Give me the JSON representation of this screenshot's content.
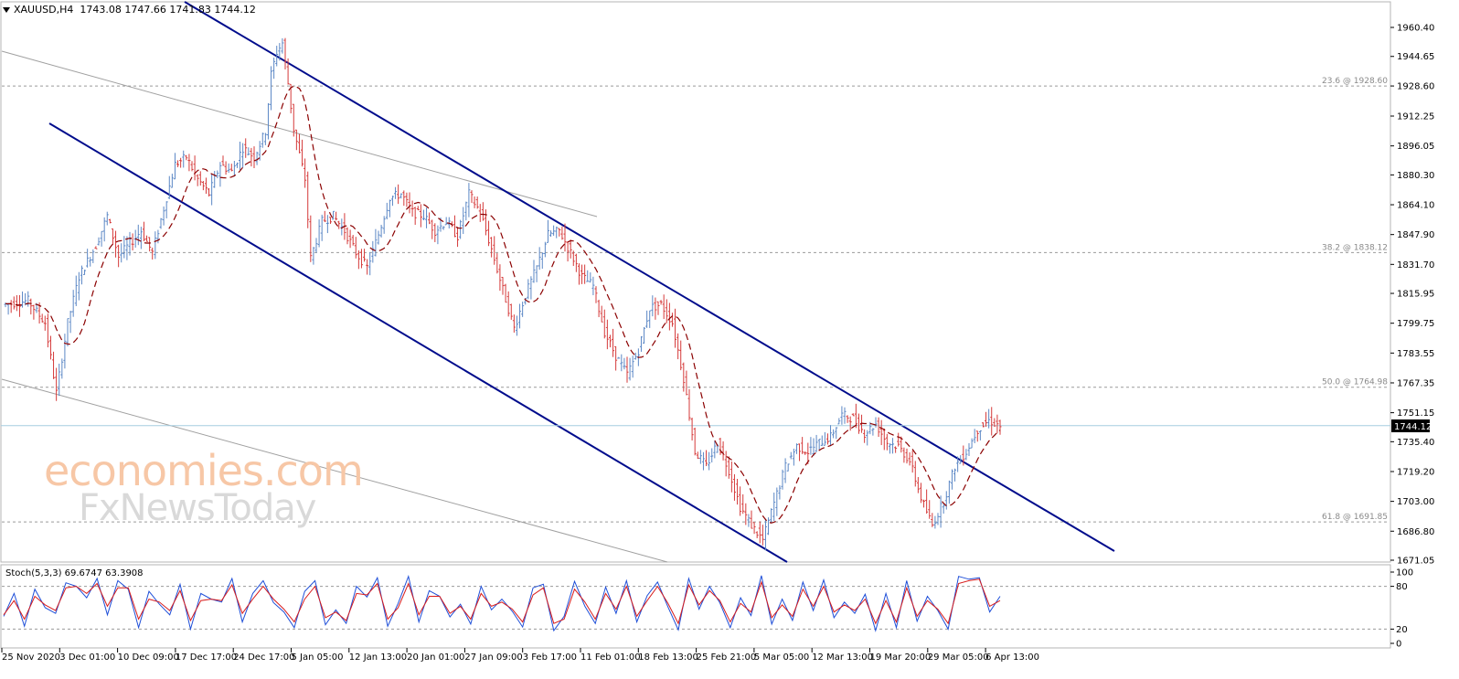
{
  "header": {
    "symbol": "XAUUSD,H4",
    "ohlc": "1743.08 1747.66 1741.83 1744.12"
  },
  "watermark": {
    "line1": "economies.com",
    "line2": "FxNewsToday"
  },
  "chart_data": [
    {
      "type": "candlestick",
      "symbol": "XAUUSD",
      "timeframe": "H4",
      "y_ticks": [
        "1960.40",
        "1944.65",
        "1928.60",
        "1912.25",
        "1896.05",
        "1880.30",
        "1864.10",
        "1847.90",
        "1831.70",
        "1815.95",
        "1799.75",
        "1783.55",
        "1767.35",
        "1751.15",
        "1735.40",
        "1719.20",
        "1703.00",
        "1686.80",
        "1671.05"
      ],
      "ylim": [
        1671.05,
        1960.4
      ],
      "x_ticks": [
        "25 Nov 2020",
        "3 Dec 01:00",
        "10 Dec 09:00",
        "17 Dec 17:00",
        "24 Dec 17:00",
        "5 Jan 05:00",
        "12 Jan 13:00",
        "20 Jan 01:00",
        "27 Jan 09:00",
        "3 Feb 17:00",
        "11 Feb 01:00",
        "18 Feb 13:00",
        "25 Feb 21:00",
        "5 Mar 05:00",
        "12 Mar 13:00",
        "19 Mar 20:00",
        "29 Mar 05:00",
        "6 Apr 13:00"
      ],
      "current_price": "1744.12",
      "fibonacci_levels": [
        {
          "label": "23.6 @ 1928.60",
          "price": 1928.6
        },
        {
          "label": "38.2 @ 1838.12",
          "price": 1838.12
        },
        {
          "label": "50.0 @ 1764.98",
          "price": 1764.98
        },
        {
          "label": "61.8 @ 1691.85",
          "price": 1691.85
        }
      ],
      "price_path": [
        [
          0,
          1810
        ],
        [
          4,
          1812
        ],
        [
          7,
          1800
        ],
        [
          9,
          1762
        ],
        [
          11,
          1800
        ],
        [
          13,
          1825
        ],
        [
          16,
          1842
        ],
        [
          18,
          1858
        ],
        [
          20,
          1836
        ],
        [
          22,
          1843
        ],
        [
          24,
          1850
        ],
        [
          26,
          1838
        ],
        [
          28,
          1862
        ],
        [
          30,
          1886
        ],
        [
          32,
          1890
        ],
        [
          34,
          1878
        ],
        [
          36,
          1870
        ],
        [
          38,
          1886
        ],
        [
          40,
          1882
        ],
        [
          42,
          1895
        ],
        [
          44,
          1890
        ],
        [
          46,
          1904
        ],
        [
          47,
          1935
        ],
        [
          48,
          1947
        ],
        [
          49,
          1952
        ],
        [
          50,
          1930
        ],
        [
          51,
          1905
        ],
        [
          53,
          1878
        ],
        [
          54,
          1835
        ],
        [
          56,
          1855
        ],
        [
          58,
          1858
        ],
        [
          60,
          1850
        ],
        [
          62,
          1838
        ],
        [
          64,
          1830
        ],
        [
          66,
          1848
        ],
        [
          68,
          1868
        ],
        [
          70,
          1870
        ],
        [
          72,
          1860
        ],
        [
          74,
          1858
        ],
        [
          76,
          1850
        ],
        [
          78,
          1855
        ],
        [
          80,
          1847
        ],
        [
          82,
          1870
        ],
        [
          84,
          1860
        ],
        [
          86,
          1840
        ],
        [
          88,
          1818
        ],
        [
          90,
          1797
        ],
        [
          92,
          1815
        ],
        [
          94,
          1830
        ],
        [
          96,
          1848
        ],
        [
          98,
          1850
        ],
        [
          100,
          1838
        ],
        [
          102,
          1825
        ],
        [
          104,
          1820
        ],
        [
          106,
          1795
        ],
        [
          108,
          1782
        ],
        [
          110,
          1772
        ],
        [
          112,
          1785
        ],
        [
          114,
          1808
        ],
        [
          116,
          1810
        ],
        [
          118,
          1800
        ],
        [
          120,
          1770
        ],
        [
          122,
          1730
        ],
        [
          124,
          1722
        ],
        [
          126,
          1735
        ],
        [
          128,
          1720
        ],
        [
          130,
          1700
        ],
        [
          132,
          1690
        ],
        [
          134,
          1682
        ],
        [
          136,
          1702
        ],
        [
          138,
          1722
        ],
        [
          140,
          1733
        ],
        [
          142,
          1730
        ],
        [
          144,
          1735
        ],
        [
          146,
          1738
        ],
        [
          148,
          1750
        ],
        [
          150,
          1748
        ],
        [
          152,
          1740
        ],
        [
          154,
          1745
        ],
        [
          156,
          1735
        ],
        [
          158,
          1733
        ],
        [
          160,
          1725
        ],
        [
          162,
          1705
        ],
        [
          164,
          1690
        ],
        [
          166,
          1703
        ],
        [
          168,
          1722
        ],
        [
          170,
          1730
        ],
        [
          172,
          1742
        ],
        [
          174,
          1747
        ],
        [
          176,
          1744
        ]
      ],
      "moving_average_color": "#8b0000",
      "channel_color": "#000c8c"
    },
    {
      "type": "line",
      "title": "Stoch(5,3,3) 69.6747 63.3908",
      "ylim": [
        0,
        100
      ],
      "y_ticks": [
        "100",
        "80",
        "20",
        "0"
      ],
      "series": [
        {
          "name": "%K",
          "color": "#1f4fd8",
          "values": [
            38,
            70,
            24,
            76,
            50,
            42,
            85,
            80,
            64,
            91,
            40,
            88,
            76,
            22,
            73,
            55,
            40,
            83,
            20,
            70,
            62,
            58,
            91,
            30,
            70,
            88,
            57,
            44,
            22,
            73,
            88,
            26,
            47,
            28,
            80,
            65,
            92,
            24,
            56,
            94,
            30,
            74,
            66,
            37,
            55,
            27,
            80,
            47,
            62,
            45,
            23,
            78,
            83,
            18,
            38,
            87,
            52,
            28,
            79,
            42,
            88,
            30,
            67,
            86,
            51,
            19,
            91,
            48,
            80,
            57,
            22,
            64,
            39,
            95,
            27,
            62,
            32,
            86,
            46,
            89,
            36,
            58,
            42,
            69,
            18,
            70,
            22,
            88,
            31,
            66,
            46,
            20,
            94,
            90,
            92,
            44,
            66
          ]
        },
        {
          "name": "%D",
          "color": "#d81b1b",
          "values": [
            40,
            60,
            34,
            66,
            54,
            46,
            78,
            80,
            70,
            84,
            52,
            78,
            78,
            34,
            62,
            58,
            46,
            74,
            32,
            60,
            62,
            60,
            82,
            42,
            62,
            80,
            62,
            48,
            30,
            62,
            80,
            36,
            44,
            32,
            70,
            68,
            84,
            34,
            50,
            84,
            40,
            66,
            66,
            42,
            52,
            34,
            70,
            52,
            58,
            48,
            30,
            68,
            78,
            28,
            34,
            76,
            58,
            34,
            70,
            48,
            80,
            38,
            60,
            80,
            56,
            28,
            82,
            54,
            74,
            60,
            30,
            56,
            44,
            86,
            36,
            54,
            38,
            76,
            52,
            80,
            44,
            54,
            46,
            62,
            28,
            60,
            30,
            78,
            38,
            60,
            48,
            28,
            84,
            88,
            90,
            52,
            60
          ]
        }
      ]
    }
  ]
}
